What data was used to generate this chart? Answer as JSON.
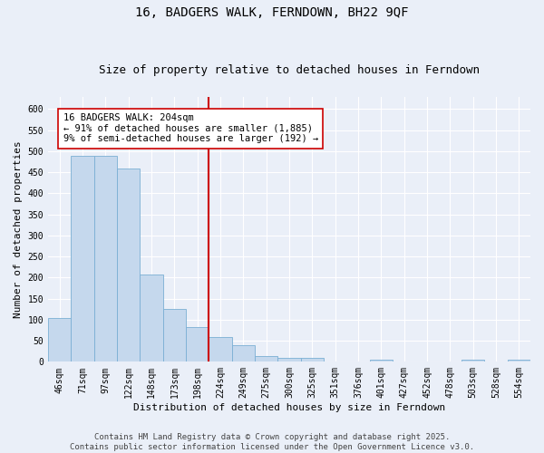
{
  "title": "16, BADGERS WALK, FERNDOWN, BH22 9QF",
  "subtitle": "Size of property relative to detached houses in Ferndown",
  "xlabel": "Distribution of detached houses by size in Ferndown",
  "ylabel": "Number of detached properties",
  "categories": [
    "46sqm",
    "71sqm",
    "97sqm",
    "122sqm",
    "148sqm",
    "173sqm",
    "198sqm",
    "224sqm",
    "249sqm",
    "275sqm",
    "300sqm",
    "325sqm",
    "351sqm",
    "376sqm",
    "401sqm",
    "427sqm",
    "452sqm",
    "478sqm",
    "503sqm",
    "528sqm",
    "554sqm"
  ],
  "values": [
    105,
    490,
    490,
    458,
    208,
    125,
    82,
    58,
    40,
    13,
    9,
    10,
    0,
    0,
    5,
    0,
    0,
    0,
    5,
    0,
    5
  ],
  "bar_color": "#c5d8ed",
  "bar_edge_color": "#7aafd4",
  "vline_color": "#cc0000",
  "annotation_text": "16 BADGERS WALK: 204sqm\n← 91% of detached houses are smaller (1,885)\n9% of semi-detached houses are larger (192) →",
  "annotation_box_color": "#ffffff",
  "annotation_box_edge": "#cc0000",
  "ylim": [
    0,
    630
  ],
  "yticks": [
    0,
    50,
    100,
    150,
    200,
    250,
    300,
    350,
    400,
    450,
    500,
    550,
    600
  ],
  "background_color": "#eaeff8",
  "grid_color": "#ffffff",
  "footer": "Contains HM Land Registry data © Crown copyright and database right 2025.\nContains public sector information licensed under the Open Government Licence v3.0.",
  "title_fontsize": 10,
  "subtitle_fontsize": 9,
  "axis_label_fontsize": 8,
  "tick_fontsize": 7,
  "footer_fontsize": 6.5,
  "annotation_fontsize": 7.5
}
